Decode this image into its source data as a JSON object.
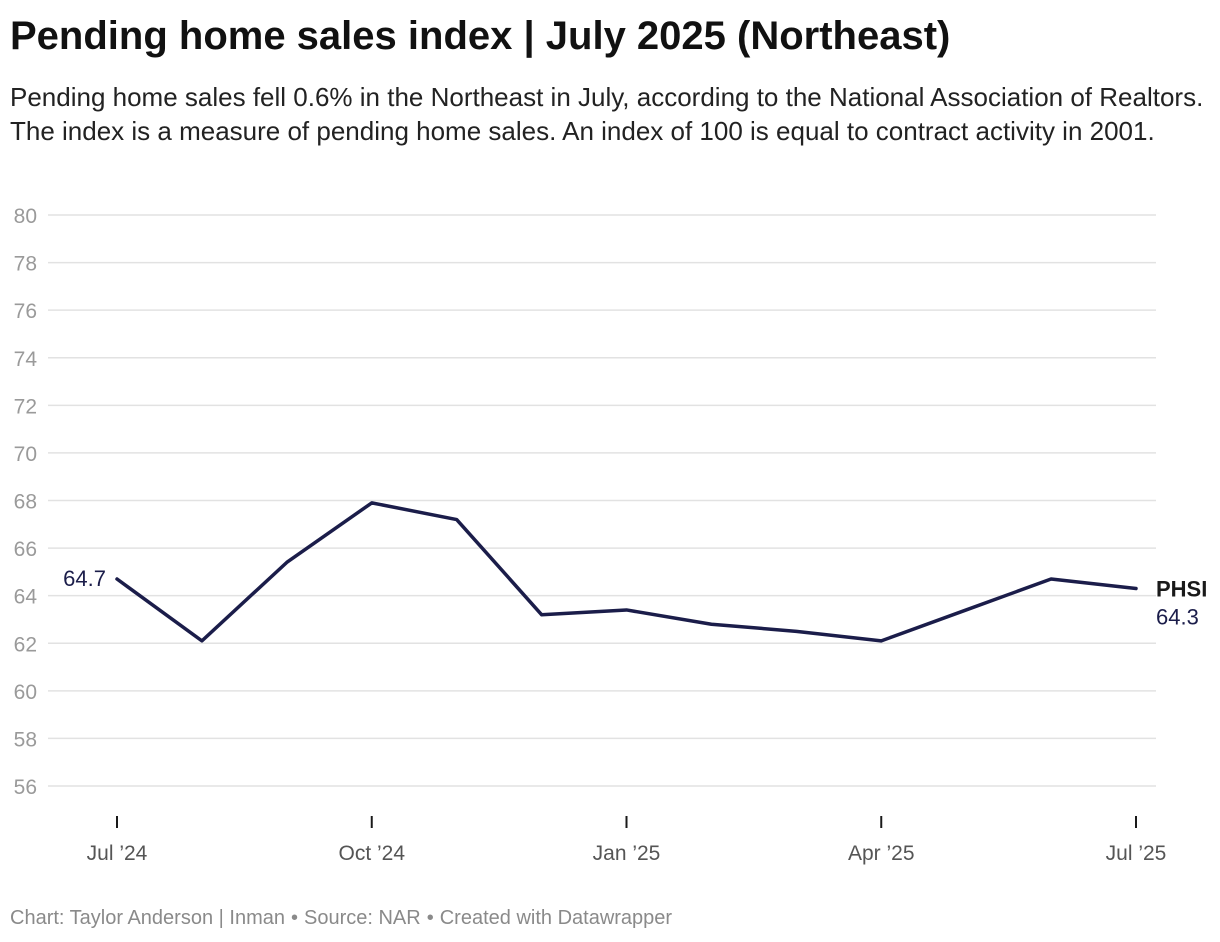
{
  "header": {
    "title": "Pending home sales index | July 2025 (Northeast)",
    "subtitle": "Pending home sales fell 0.6% in the Northeast in July, according to the National Association of Realtors. The index is a measure of pending home sales. An index of 100 is equal to contract activity in 2001."
  },
  "chart_data": {
    "type": "line",
    "title": "Pending home sales index | July 2025 (Northeast)",
    "xlabel": "",
    "ylabel": "",
    "ylim": [
      56,
      80
    ],
    "y_ticks": [
      56,
      58,
      60,
      62,
      64,
      66,
      68,
      70,
      72,
      74,
      76,
      78,
      80
    ],
    "grid": true,
    "line_color": "#1b1d4a",
    "x": [
      "Jul 2024",
      "Aug 2024",
      "Sep 2024",
      "Oct 2024",
      "Nov 2024",
      "Dec 2024",
      "Jan 2025",
      "Feb 2025",
      "Mar 2025",
      "Apr 2025",
      "May 2025",
      "Jun 2025",
      "Jul 2025"
    ],
    "x_tick_labels": [
      {
        "index": 0,
        "label": "Jul ’24"
      },
      {
        "index": 3,
        "label": "Oct ’24"
      },
      {
        "index": 6,
        "label": "Jan ’25"
      },
      {
        "index": 9,
        "label": "Apr ’25"
      },
      {
        "index": 12,
        "label": "Jul ’25"
      }
    ],
    "series": [
      {
        "name": "PHSI",
        "values": [
          64.7,
          62.1,
          65.4,
          67.9,
          67.2,
          63.2,
          63.4,
          62.8,
          62.5,
          62.1,
          63.4,
          64.7,
          64.3
        ]
      }
    ],
    "annotations": {
      "start_label": "64.7",
      "end_series_label": "PHSI",
      "end_value_label": "64.3"
    }
  },
  "footer": {
    "chart_credit": "Chart: Taylor Anderson | Inman",
    "source": "Source: NAR",
    "created_with": "Created with Datawrapper"
  }
}
